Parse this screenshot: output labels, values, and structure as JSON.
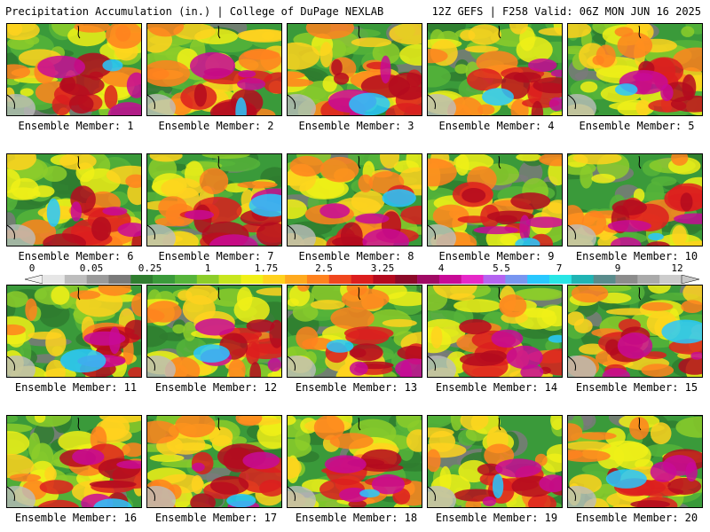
{
  "header": {
    "title": "Precipitation Accumulation (in.) | College of DuPage NEXLAB",
    "run_info": "12Z GEFS | F258 Valid: 06Z MON JUN 16 2025"
  },
  "legend": {
    "ticks": [
      "0",
      "0.05",
      "0.25",
      "1",
      "1.75",
      "2.5",
      "3.25",
      "4",
      "5.5",
      "7",
      "9",
      "12"
    ],
    "colors": [
      "#e6e6e6",
      "#bdbdbd",
      "#9a9a9a",
      "#7a7a7a",
      "#2f7d2f",
      "#3a9a3a",
      "#56b43a",
      "#8ccd2a",
      "#c8e61e",
      "#f0f018",
      "#ffd21e",
      "#ffaa1e",
      "#ff821e",
      "#f0461e",
      "#dc1e1e",
      "#b40a1e",
      "#8c0a28",
      "#a00a64",
      "#c80a96",
      "#e628c8",
      "#b464f0",
      "#7896f0",
      "#28c8ff",
      "#28e6e6",
      "#20b4b4",
      "#5a8c8c",
      "#8c8c8c",
      "#aaaaaa",
      "#cccccc"
    ]
  },
  "panels": [
    {
      "label": "Ensemble Member: 1"
    },
    {
      "label": "Ensemble Member: 2"
    },
    {
      "label": "Ensemble Member: 3"
    },
    {
      "label": "Ensemble Member: 4"
    },
    {
      "label": "Ensemble Member: 5"
    },
    {
      "label": "Ensemble Member: 6"
    },
    {
      "label": "Ensemble Member: 7"
    },
    {
      "label": "Ensemble Member: 8"
    },
    {
      "label": "Ensemble Member: 9"
    },
    {
      "label": "Ensemble Member: 10"
    },
    {
      "label": "Ensemble Member: 11"
    },
    {
      "label": "Ensemble Member: 12"
    },
    {
      "label": "Ensemble Member: 13"
    },
    {
      "label": "Ensemble Member: 14"
    },
    {
      "label": "Ensemble Member: 15"
    },
    {
      "label": "Ensemble Member: 16"
    },
    {
      "label": "Ensemble Member: 17"
    },
    {
      "label": "Ensemble Member: 18"
    },
    {
      "label": "Ensemble Member: 19"
    },
    {
      "label": "Ensemble Member: 20"
    }
  ]
}
